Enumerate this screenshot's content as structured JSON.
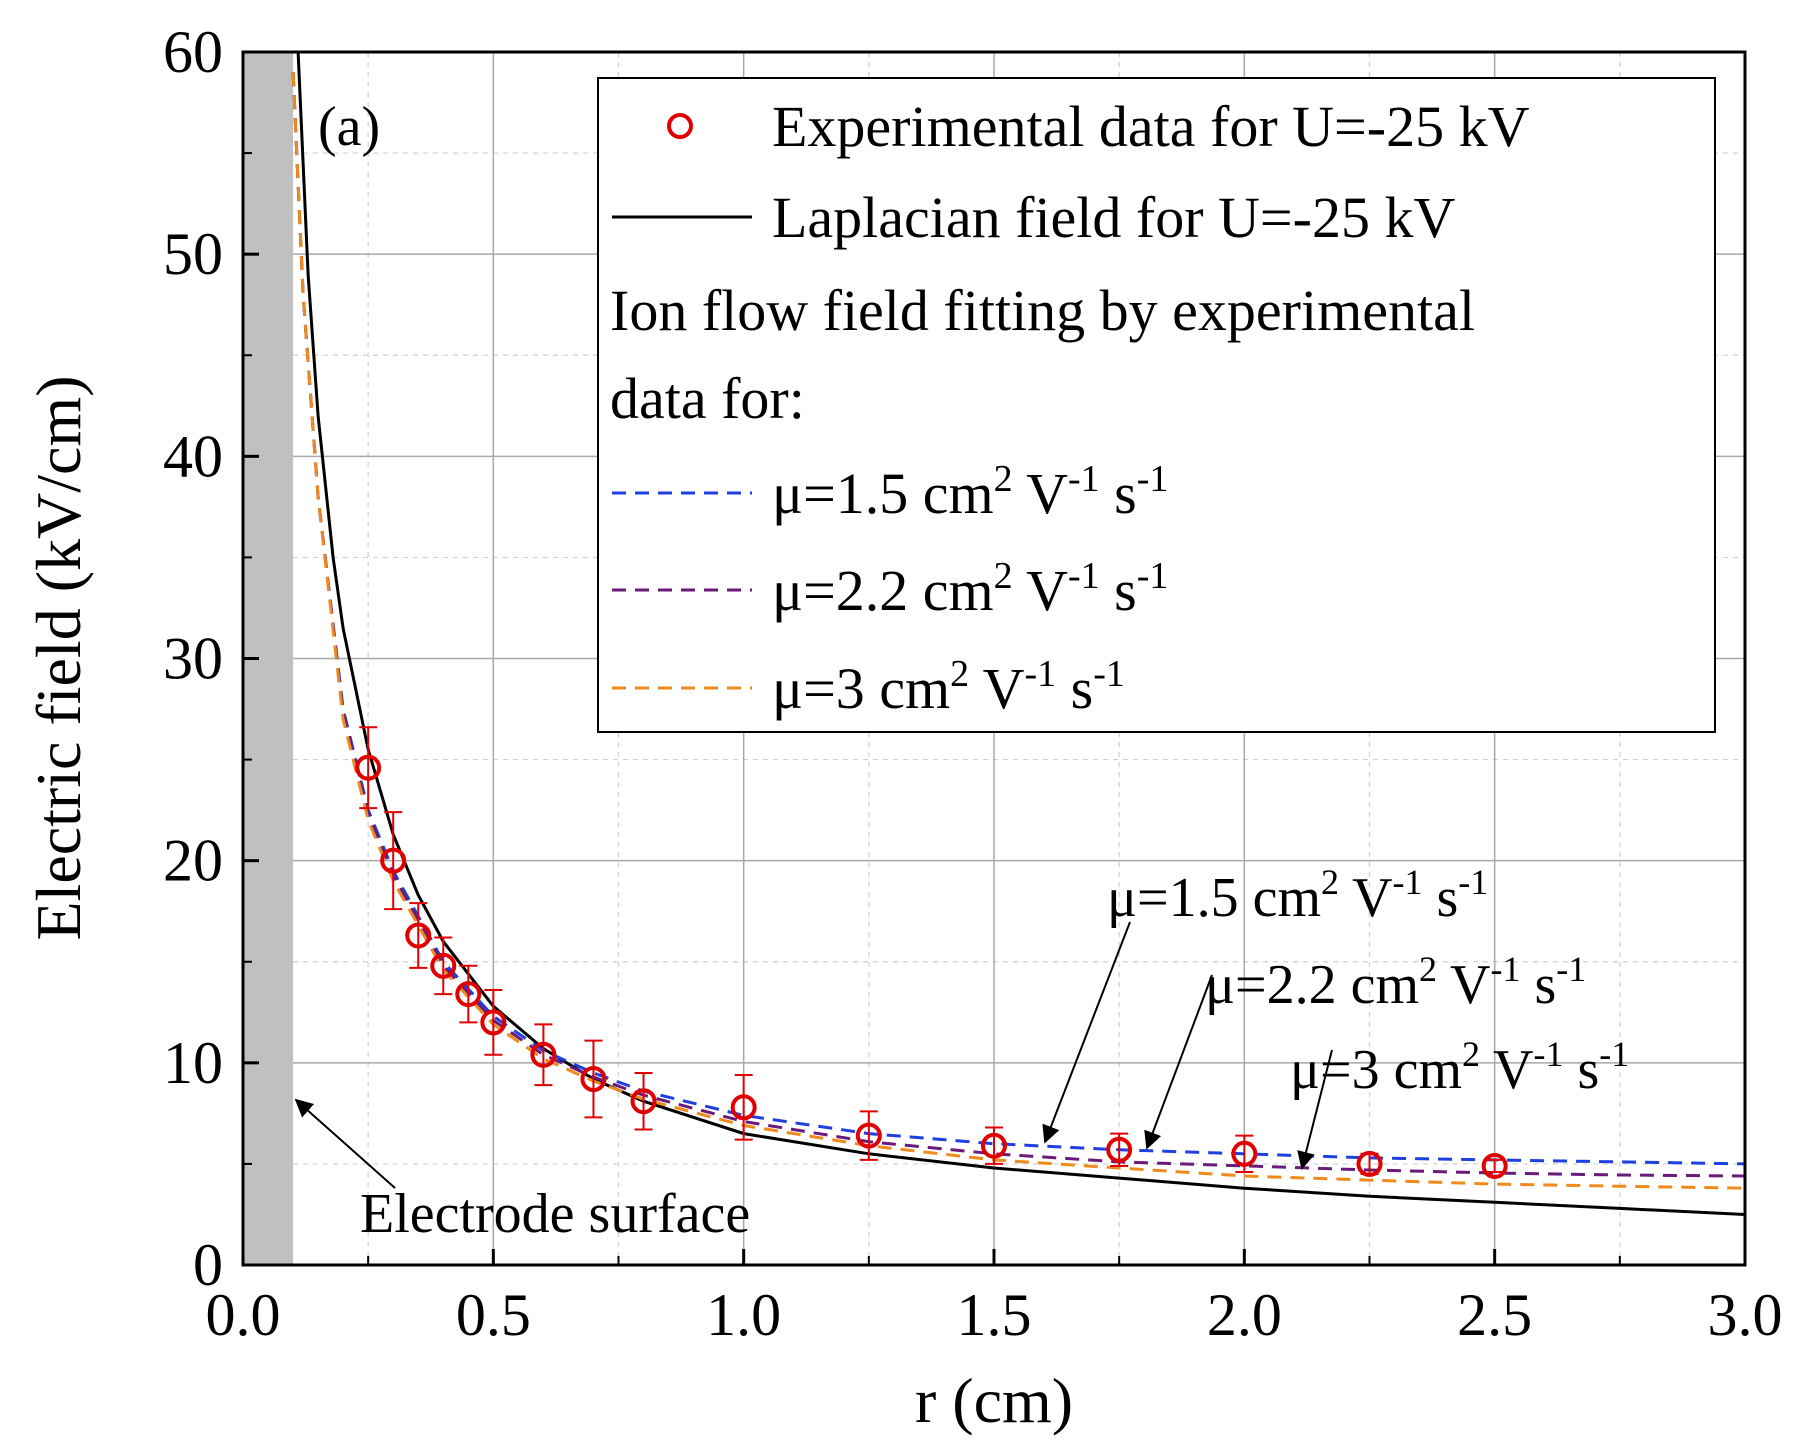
{
  "chart_data": {
    "type": "line",
    "panel_label": "(a)",
    "xlabel": "r (cm)",
    "ylabel": "Electric field (kV/cm)",
    "xlim": [
      0,
      3
    ],
    "ylim": [
      0,
      60
    ],
    "x_ticks": [
      0,
      0.5,
      1,
      1.5,
      2,
      2.5,
      3
    ],
    "x_tick_labels": [
      "0.0",
      "0.5",
      "1.0",
      "1.5",
      "2.0",
      "2.5",
      "3.0"
    ],
    "y_ticks": [
      0,
      10,
      20,
      30,
      40,
      50,
      60
    ],
    "y_tick_labels": [
      "0",
      "10",
      "20",
      "30",
      "40",
      "50",
      "60"
    ],
    "grid": true,
    "electrode_region": [
      0,
      0.1
    ],
    "colors": {
      "experimental": "#e00000",
      "laplacian": "#000000",
      "mu15": "#1f3fe0",
      "mu22": "#6a1b7a",
      "mu3": "#f08a1c",
      "electrode": "#c0c0c0"
    },
    "experimental": {
      "x": [
        0.25,
        0.3,
        0.35,
        0.4,
        0.45,
        0.5,
        0.6,
        0.7,
        0.8,
        1.0,
        1.25,
        1.5,
        1.75,
        2.0,
        2.25,
        2.5
      ],
      "y": [
        24.6,
        20.0,
        16.3,
        14.8,
        13.4,
        12.0,
        10.4,
        9.2,
        8.1,
        7.8,
        6.4,
        5.9,
        5.7,
        5.5,
        5.0,
        4.9
      ],
      "err": [
        2.0,
        2.4,
        1.6,
        1.4,
        1.4,
        1.6,
        1.5,
        1.9,
        1.4,
        1.6,
        1.2,
        0.9,
        0.8,
        0.9,
        0.5,
        0.3
      ]
    },
    "laplacian": {
      "x": [
        0.11,
        0.13,
        0.15,
        0.18,
        0.2,
        0.25,
        0.3,
        0.35,
        0.4,
        0.5,
        0.6,
        0.7,
        0.8,
        1.0,
        1.25,
        1.5,
        1.75,
        2.0,
        2.25,
        2.5,
        2.75,
        3.0
      ],
      "y": [
        60.0,
        49.0,
        42.0,
        35.0,
        31.5,
        25.5,
        21.3,
        18.3,
        16.0,
        12.8,
        10.7,
        9.2,
        8.1,
        6.5,
        5.5,
        4.8,
        4.3,
        3.8,
        3.4,
        3.1,
        2.8,
        2.5
      ]
    },
    "series": [
      {
        "name": "μ=1.5 cm² V⁻¹ s⁻¹",
        "x": [
          0.1,
          0.12,
          0.15,
          0.2,
          0.25,
          0.3,
          0.4,
          0.5,
          0.6,
          0.7,
          0.8,
          1.0,
          1.25,
          1.5,
          1.75,
          2.0,
          2.25,
          2.5,
          2.75,
          3.0
        ],
        "y": [
          59.0,
          48.0,
          38.0,
          27.5,
          22.5,
          19.5,
          15.0,
          12.3,
          10.6,
          9.5,
          8.6,
          7.4,
          6.5,
          6.0,
          5.7,
          5.5,
          5.3,
          5.2,
          5.1,
          5.0
        ]
      },
      {
        "name": "μ=2.2 cm² V⁻¹ s⁻¹",
        "x": [
          0.1,
          0.12,
          0.15,
          0.2,
          0.25,
          0.3,
          0.4,
          0.5,
          0.6,
          0.7,
          0.8,
          1.0,
          1.25,
          1.5,
          1.75,
          2.0,
          2.25,
          2.5,
          2.75,
          3.0
        ],
        "y": [
          59.0,
          48.0,
          38.0,
          27.3,
          22.3,
          19.3,
          14.8,
          12.1,
          10.4,
          9.3,
          8.4,
          7.1,
          6.1,
          5.5,
          5.1,
          4.9,
          4.7,
          4.55,
          4.45,
          4.4
        ]
      },
      {
        "name": "μ=3 cm² V⁻¹ s⁻¹",
        "x": [
          0.1,
          0.12,
          0.15,
          0.2,
          0.25,
          0.3,
          0.4,
          0.5,
          0.6,
          0.7,
          0.8,
          1.0,
          1.25,
          1.5,
          1.75,
          2.0,
          2.25,
          2.5,
          2.75,
          3.0
        ],
        "y": [
          59.0,
          48.0,
          38.0,
          27.0,
          22.0,
          19.0,
          14.6,
          11.9,
          10.2,
          9.1,
          8.2,
          6.9,
          5.9,
          5.2,
          4.8,
          4.4,
          4.2,
          4.0,
          3.9,
          3.8
        ]
      }
    ],
    "legend": {
      "experimental": "Experimental data for U=-25 kV",
      "laplacian": "Laplacian field for U=-25 kV",
      "ion_flow_line1": "Ion flow field fitting by experimental",
      "ion_flow_line2": "data for:",
      "mu15": {
        "base": "μ=1.5 cm",
        "sq": "2",
        "v": " V",
        "neg1": "-1",
        "s": " s",
        "neg2": "-1"
      },
      "mu22": {
        "base": "μ=2.2 cm",
        "sq": "2",
        "v": " V",
        "neg1": "-1",
        "s": " s",
        "neg2": "-1"
      },
      "mu3": {
        "base": "μ=3 cm",
        "sq": "2",
        "v": " V",
        "neg1": "-1",
        "s": " s",
        "neg2": "-1"
      }
    },
    "annotations": {
      "electrode": "Electrode surface",
      "mu15": {
        "base": "μ=1.5 cm",
        "sq": "2",
        "v": " V",
        "neg1": "-1",
        "s": " s",
        "neg2": "-1"
      },
      "mu22": {
        "base": "μ=2.2 cm",
        "sq": "2",
        "v": " V",
        "neg1": "-1",
        "s": " s",
        "neg2": "-1"
      },
      "mu3": {
        "base": "μ=3 cm",
        "sq": "2",
        "v": " V",
        "neg1": "-1",
        "s": " s",
        "neg2": "-1"
      }
    }
  }
}
